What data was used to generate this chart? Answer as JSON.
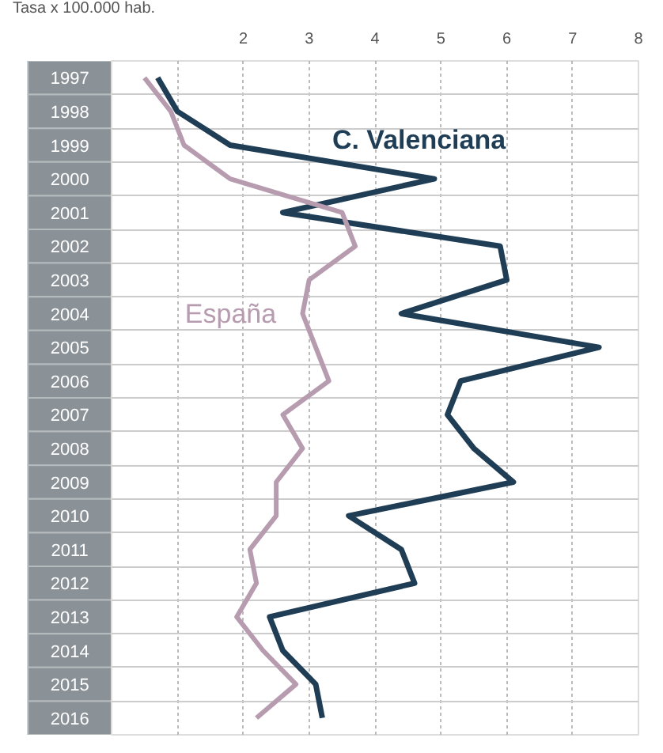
{
  "chart_data": {
    "type": "line",
    "orientation": "horizontal",
    "xlabel": "Tasa x 100.000 hab.",
    "categories": [
      "1997",
      "1998",
      "1999",
      "2000",
      "2001",
      "2002",
      "2003",
      "2004",
      "2005",
      "2006",
      "2007",
      "2008",
      "2009",
      "2010",
      "2011",
      "2012",
      "2013",
      "2014",
      "2015",
      "2016"
    ],
    "series": [
      {
        "name": "C. Valenciana",
        "color": "#1f3d55",
        "values": [
          0.7,
          1.0,
          1.8,
          4.9,
          2.6,
          5.9,
          6.0,
          4.4,
          7.4,
          5.3,
          5.1,
          5.5,
          6.1,
          3.6,
          4.4,
          4.6,
          2.4,
          2.6,
          3.1,
          3.2
        ]
      },
      {
        "name": "España",
        "color": "#b79cb0",
        "values": [
          0.5,
          0.9,
          1.1,
          1.8,
          3.5,
          3.7,
          3.0,
          2.9,
          3.1,
          3.3,
          2.6,
          2.9,
          2.5,
          2.5,
          2.1,
          2.2,
          1.9,
          2.3,
          2.8,
          2.2
        ]
      }
    ],
    "xlim": [
      0,
      8
    ],
    "xticks": [
      {
        "value": 1,
        "label": null
      },
      2,
      3,
      4,
      5,
      6,
      7,
      8
    ],
    "grid": true,
    "line_style": "solid",
    "marker": "none"
  }
}
